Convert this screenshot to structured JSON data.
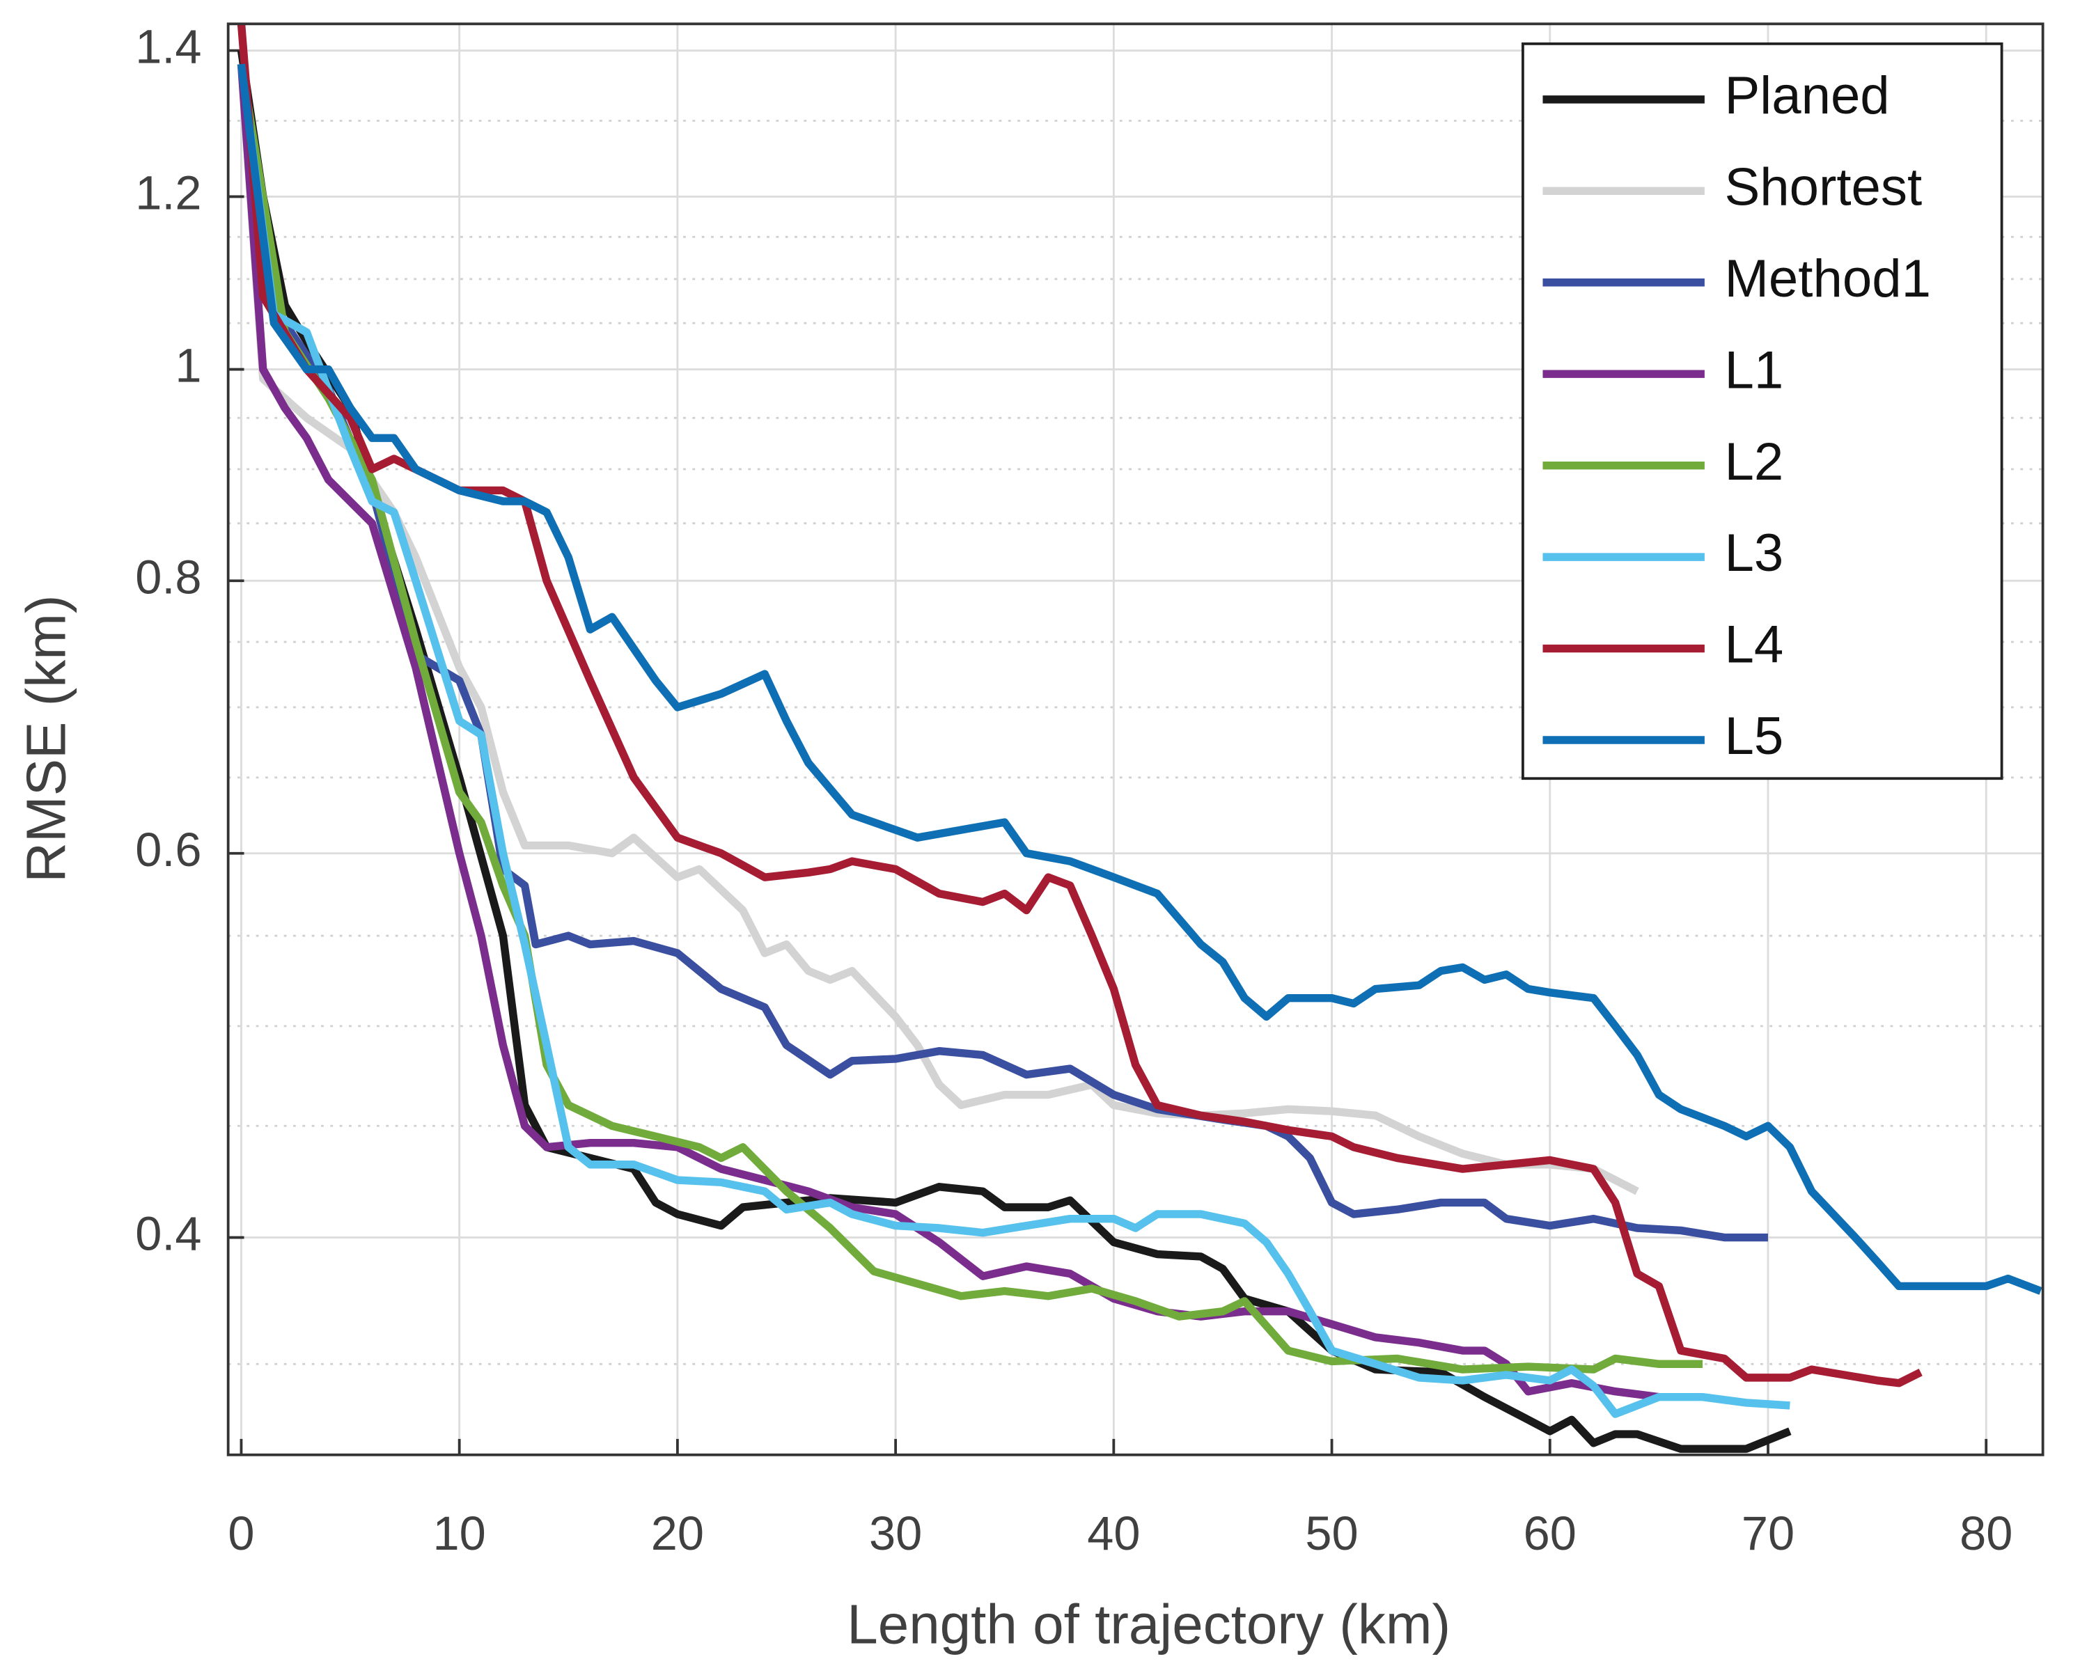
{
  "chart_data": {
    "type": "line",
    "x_label": "Length of trajectory (km)",
    "y_label": "RMSE (km)",
    "log_y": true,
    "grid": true,
    "legend": "upper right",
    "xlim": [
      -0.6,
      82.6
    ],
    "ylim": [
      0.318,
      1.44
    ],
    "xticks": [
      0,
      10,
      20,
      30,
      40,
      50,
      60,
      70,
      80
    ],
    "yticks": [
      0.4,
      0.6,
      0.8,
      1,
      1.2,
      1.4
    ],
    "yminor_ticks": [
      0.35,
      0.45,
      0.5,
      0.55,
      0.65,
      0.7,
      0.75,
      0.85,
      0.9,
      0.95,
      1.05,
      1.1,
      1.15,
      1.3
    ],
    "series": [
      {
        "name": "Planed",
        "color": "#1a1a1a",
        "x": [
          0,
          1,
          2,
          3,
          5,
          6,
          8,
          10,
          12,
          13,
          14,
          16,
          18,
          19,
          20,
          22,
          23,
          25,
          27,
          30,
          32,
          34,
          35,
          37,
          38,
          40,
          42,
          44,
          45,
          46,
          48,
          50,
          52,
          55,
          57,
          59,
          60,
          61,
          62,
          63,
          64,
          66,
          68,
          69,
          71
        ],
        "values": [
          1.4,
          1.2,
          1.07,
          1.03,
          0.96,
          0.88,
          0.76,
          0.65,
          0.55,
          0.46,
          0.44,
          0.435,
          0.43,
          0.415,
          0.41,
          0.405,
          0.413,
          0.415,
          0.417,
          0.415,
          0.422,
          0.42,
          0.413,
          0.413,
          0.416,
          0.398,
          0.393,
          0.392,
          0.387,
          0.375,
          0.37,
          0.355,
          0.348,
          0.347,
          0.338,
          0.33,
          0.326,
          0.33,
          0.322,
          0.325,
          0.325,
          0.32,
          0.32,
          0.32,
          0.326
        ]
      },
      {
        "name": "Shortest",
        "color": "#d3d3d3",
        "x": [
          0,
          1,
          3,
          5,
          7,
          8,
          10,
          11,
          12,
          13,
          15,
          17,
          18,
          20,
          21,
          23,
          24,
          25,
          26,
          27,
          28,
          30,
          31,
          32,
          33,
          35,
          37,
          39,
          40,
          42,
          44,
          46,
          48,
          50,
          52,
          54,
          56,
          58,
          60,
          62,
          64
        ],
        "values": [
          1.38,
          0.99,
          0.95,
          0.92,
          0.86,
          0.82,
          0.73,
          0.7,
          0.64,
          0.605,
          0.605,
          0.6,
          0.61,
          0.585,
          0.59,
          0.565,
          0.54,
          0.545,
          0.53,
          0.525,
          0.53,
          0.505,
          0.49,
          0.47,
          0.46,
          0.465,
          0.465,
          0.47,
          0.46,
          0.456,
          0.455,
          0.456,
          0.458,
          0.457,
          0.455,
          0.445,
          0.437,
          0.432,
          0.432,
          0.43,
          0.42
        ]
      },
      {
        "name": "Method1",
        "color": "#3b4fa0",
        "x": [
          0,
          1,
          2,
          4,
          6,
          8,
          10,
          11,
          12,
          13,
          13.5,
          15,
          16,
          18,
          20,
          22,
          24,
          25,
          27,
          28,
          30,
          32,
          34,
          36,
          38,
          40,
          42,
          45,
          47,
          48,
          49,
          50,
          51,
          53,
          55,
          57,
          58,
          60,
          62,
          64,
          66,
          68,
          70
        ],
        "values": [
          1.38,
          1.1,
          1.05,
          0.98,
          0.88,
          0.74,
          0.72,
          0.68,
          0.59,
          0.58,
          0.545,
          0.55,
          0.545,
          0.547,
          0.54,
          0.52,
          0.51,
          0.49,
          0.475,
          0.482,
          0.483,
          0.487,
          0.485,
          0.475,
          0.478,
          0.465,
          0.458,
          0.453,
          0.45,
          0.445,
          0.435,
          0.415,
          0.41,
          0.412,
          0.415,
          0.415,
          0.408,
          0.405,
          0.408,
          0.404,
          0.403,
          0.4,
          0.4
        ]
      },
      {
        "name": "L1",
        "color": "#7b2d8e",
        "x": [
          0,
          1,
          2,
          3,
          4,
          6,
          8,
          10,
          11,
          12,
          13,
          14,
          16,
          18,
          20,
          22,
          24,
          26,
          28,
          30,
          32,
          34,
          36,
          38,
          40,
          42,
          44,
          46,
          48,
          50,
          52,
          54,
          56,
          57,
          58,
          59,
          61,
          63,
          65
        ],
        "values": [
          1.38,
          1.0,
          0.96,
          0.93,
          0.89,
          0.85,
          0.73,
          0.6,
          0.55,
          0.49,
          0.45,
          0.44,
          0.442,
          0.442,
          0.44,
          0.43,
          0.425,
          0.42,
          0.413,
          0.41,
          0.398,
          0.384,
          0.388,
          0.385,
          0.375,
          0.37,
          0.368,
          0.37,
          0.37,
          0.365,
          0.36,
          0.358,
          0.355,
          0.355,
          0.35,
          0.34,
          0.343,
          0.34,
          0.338
        ]
      },
      {
        "name": "L2",
        "color": "#70ab3c",
        "x": [
          0,
          2,
          4,
          6,
          8,
          10,
          11,
          12,
          13,
          14,
          15,
          17,
          19,
          21,
          22,
          23,
          25,
          27,
          29,
          31,
          33,
          35,
          37,
          39,
          41,
          43,
          45,
          46,
          48,
          50,
          53,
          56,
          59,
          62,
          63,
          65,
          67
        ],
        "values": [
          1.38,
          1.04,
          0.97,
          0.89,
          0.75,
          0.64,
          0.62,
          0.58,
          0.55,
          0.48,
          0.46,
          0.45,
          0.445,
          0.44,
          0.435,
          0.44,
          0.42,
          0.404,
          0.386,
          0.381,
          0.376,
          0.378,
          0.376,
          0.379,
          0.374,
          0.368,
          0.37,
          0.374,
          0.355,
          0.351,
          0.352,
          0.348,
          0.349,
          0.348,
          0.352,
          0.35,
          0.35
        ]
      },
      {
        "name": "L3",
        "color": "#55c1ec",
        "x": [
          0,
          1.5,
          3,
          5,
          6,
          7,
          8,
          10,
          11,
          12,
          13,
          14,
          15,
          16,
          18,
          20,
          22,
          24,
          25,
          27,
          28,
          30,
          32,
          34,
          36,
          38,
          40,
          41,
          42,
          44,
          46,
          47,
          48,
          49,
          50,
          52,
          54,
          56,
          58,
          60,
          61,
          62,
          63,
          65,
          67,
          69,
          71
        ],
        "values": [
          1.38,
          1.06,
          1.04,
          0.92,
          0.87,
          0.86,
          0.8,
          0.69,
          0.68,
          0.6,
          0.545,
          0.49,
          0.44,
          0.432,
          0.432,
          0.425,
          0.424,
          0.42,
          0.412,
          0.415,
          0.41,
          0.405,
          0.404,
          0.402,
          0.405,
          0.408,
          0.408,
          0.404,
          0.41,
          0.41,
          0.406,
          0.398,
          0.385,
          0.37,
          0.355,
          0.35,
          0.345,
          0.344,
          0.346,
          0.344,
          0.348,
          0.342,
          0.332,
          0.338,
          0.338,
          0.336,
          0.335
        ]
      },
      {
        "name": "L4",
        "color": "#a61d33",
        "x": [
          0,
          1,
          3,
          5,
          6,
          7,
          9,
          10,
          12,
          13,
          14,
          16,
          18,
          20,
          22,
          24,
          26,
          27,
          28,
          30,
          32,
          34,
          35,
          36,
          37,
          38,
          39,
          40,
          41,
          42,
          44,
          46,
          48,
          50,
          51,
          53,
          56,
          58,
          60,
          62,
          63,
          64,
          65,
          66,
          68,
          69,
          71,
          72,
          75,
          76,
          77
        ],
        "values": [
          1.44,
          1.08,
          1.0,
          0.95,
          0.9,
          0.91,
          0.89,
          0.88,
          0.88,
          0.87,
          0.8,
          0.72,
          0.65,
          0.61,
          0.6,
          0.585,
          0.588,
          0.59,
          0.595,
          0.59,
          0.575,
          0.57,
          0.575,
          0.565,
          0.585,
          0.58,
          0.55,
          0.52,
          0.48,
          0.46,
          0.455,
          0.452,
          0.448,
          0.445,
          0.44,
          0.435,
          0.43,
          0.432,
          0.434,
          0.43,
          0.415,
          0.385,
          0.38,
          0.355,
          0.352,
          0.345,
          0.345,
          0.348,
          0.344,
          0.343,
          0.347
        ]
      },
      {
        "name": "L5",
        "color": "#0f6fb5",
        "x": [
          0,
          1.5,
          3,
          4,
          5,
          6,
          7,
          8,
          9,
          10,
          12,
          13,
          14,
          15,
          16,
          17,
          19,
          20,
          22,
          24,
          25,
          26,
          28,
          30,
          31,
          33,
          35,
          36,
          38,
          40,
          42,
          44,
          45,
          46,
          47,
          48,
          50,
          51,
          52,
          54,
          55,
          56,
          57,
          58,
          59,
          60,
          62,
          63,
          64,
          65,
          66,
          68,
          69,
          70,
          71,
          72,
          74,
          75,
          76,
          78,
          80,
          81,
          82.5
        ],
        "values": [
          1.38,
          1.05,
          1.0,
          1.0,
          0.96,
          0.93,
          0.93,
          0.9,
          0.89,
          0.88,
          0.87,
          0.87,
          0.86,
          0.82,
          0.76,
          0.77,
          0.72,
          0.7,
          0.71,
          0.725,
          0.69,
          0.66,
          0.625,
          0.615,
          0.61,
          0.615,
          0.62,
          0.6,
          0.595,
          0.585,
          0.575,
          0.545,
          0.535,
          0.515,
          0.505,
          0.515,
          0.515,
          0.512,
          0.52,
          0.522,
          0.53,
          0.532,
          0.525,
          0.528,
          0.52,
          0.518,
          0.515,
          0.5,
          0.485,
          0.465,
          0.458,
          0.45,
          0.445,
          0.45,
          0.44,
          0.42,
          0.4,
          0.39,
          0.38,
          0.38,
          0.38,
          0.383,
          0.378
        ]
      }
    ]
  }
}
